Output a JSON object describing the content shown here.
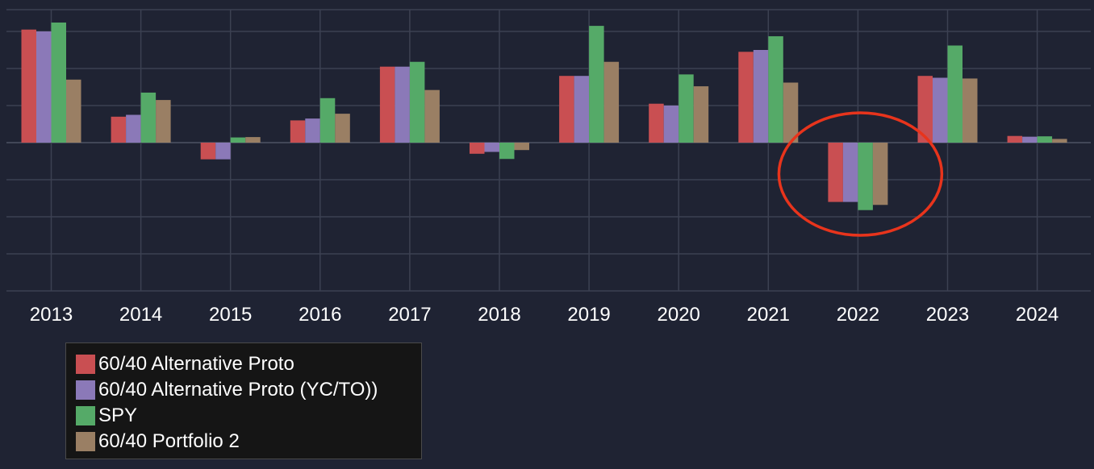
{
  "chart_data": {
    "type": "bar",
    "categories": [
      "2013",
      "2014",
      "2015",
      "2016",
      "2017",
      "2018",
      "2019",
      "2020",
      "2021",
      "2022",
      "2023",
      "2024"
    ],
    "series": [
      {
        "name": "60/40 Alternative Proto",
        "color": "#c94f52",
        "values": [
          30.5,
          7.0,
          -4.5,
          6.0,
          20.5,
          -3.0,
          18.0,
          10.5,
          24.5,
          -16.0,
          18.0,
          1.8
        ]
      },
      {
        "name": "60/40 Alternative Proto (YC/TO))",
        "color": "#8b79b8",
        "values": [
          30.0,
          7.5,
          -4.5,
          6.5,
          20.5,
          -2.5,
          18.0,
          10.0,
          25.0,
          -16.0,
          17.5,
          1.6
        ]
      },
      {
        "name": "SPY",
        "color": "#55aa68",
        "values": [
          32.4,
          13.5,
          1.4,
          12.0,
          21.8,
          -4.4,
          31.5,
          18.4,
          28.7,
          -18.2,
          26.2,
          1.7
        ]
      },
      {
        "name": "60/40 Portfolio 2",
        "color": "#9a7f64",
        "values": [
          17.0,
          11.5,
          1.5,
          7.8,
          14.2,
          -2.0,
          21.8,
          15.2,
          16.2,
          -16.8,
          17.3,
          1.0
        ]
      }
    ],
    "ylim": [
      -40,
      35
    ],
    "grid": true,
    "legend_position": "bottom-left",
    "annotation": {
      "type": "ellipse",
      "target_category": "2022",
      "color": "#e8341c"
    }
  }
}
